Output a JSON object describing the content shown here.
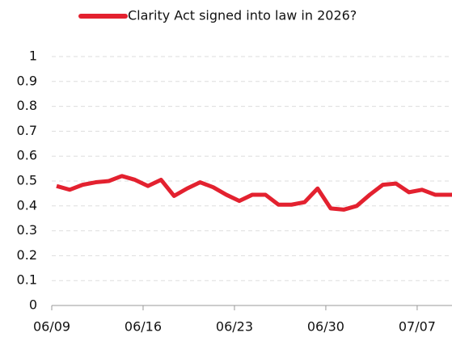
{
  "chart_data": {
    "type": "line",
    "categories": [
      "06/09",
      null,
      null,
      null,
      null,
      null,
      null,
      "06/16",
      null,
      null,
      null,
      null,
      null,
      null,
      "06/23",
      null,
      null,
      null,
      null,
      null,
      null,
      "06/30",
      null,
      null,
      null,
      null,
      null,
      null,
      "07/07",
      null,
      null,
      null
    ],
    "series": [
      {
        "name": "Clarity Act signed into law in 2026?",
        "color": "#e3212f",
        "values": [
          0.48,
          0.465,
          0.485,
          0.495,
          0.5,
          0.52,
          0.505,
          0.48,
          0.505,
          0.44,
          0.47,
          0.495,
          0.475,
          0.445,
          0.42,
          0.445,
          0.445,
          0.405,
          0.405,
          0.415,
          0.47,
          0.39,
          0.385,
          0.4,
          0.445,
          0.485,
          0.49,
          0.455,
          0.465,
          0.445,
          0.445,
          0.445
        ]
      }
    ],
    "ylim": [
      0,
      1
    ],
    "yticks": [
      0,
      0.1,
      0.2,
      0.3,
      0.4,
      0.5,
      0.6,
      0.7,
      0.8,
      0.9,
      1
    ],
    "grid": true,
    "legend": "top"
  }
}
